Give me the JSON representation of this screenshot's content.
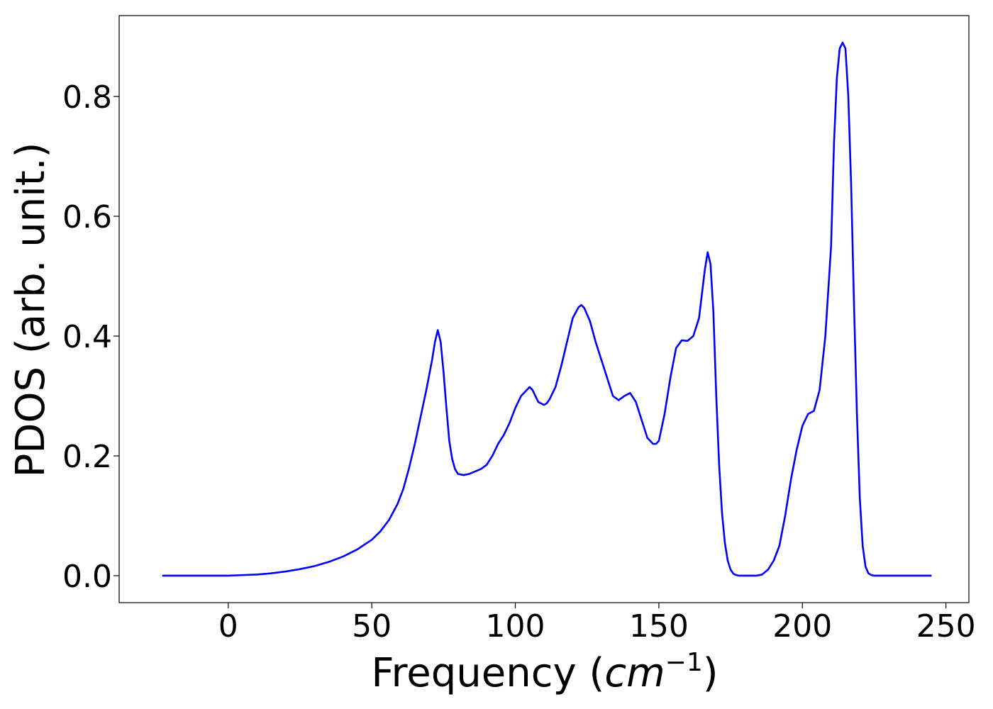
{
  "chart_data": {
    "type": "line",
    "title": "",
    "xlabel_prefix": "Frequency (",
    "xlabel_unit": "cm",
    "xlabel_exp": "−1",
    "xlabel_suffix": ")",
    "ylabel": "PDOS (arb. unit.)",
    "xlim": [
      -38,
      258
    ],
    "ylim": [
      -0.045,
      0.935
    ],
    "xticks": [
      0,
      50,
      100,
      150,
      200,
      250
    ],
    "xtick_labels": [
      "0",
      "50",
      "100",
      "150",
      "200",
      "250"
    ],
    "yticks": [
      0.0,
      0.2,
      0.4,
      0.6,
      0.8
    ],
    "ytick_labels": [
      "0.0",
      "0.2",
      "0.4",
      "0.6",
      "0.8"
    ],
    "grid": false,
    "series": [
      {
        "color": "#0000ff",
        "x": [
          -23,
          -10,
          0,
          5,
          10,
          15,
          20,
          25,
          30,
          35,
          40,
          45,
          50,
          53,
          56,
          59,
          61,
          63,
          65,
          67,
          69,
          71,
          72,
          73,
          74,
          75,
          76,
          77,
          78,
          79,
          80,
          82,
          84,
          86,
          88,
          90,
          92,
          94,
          96,
          98,
          100,
          102,
          104,
          105,
          106,
          107,
          108,
          110,
          111,
          112,
          114,
          116,
          118,
          120,
          122,
          123,
          124,
          126,
          128,
          130,
          132,
          134,
          136,
          138,
          140,
          142,
          144,
          146,
          148,
          149,
          150,
          152,
          154,
          156,
          158,
          160,
          162,
          164,
          166,
          167,
          168,
          169,
          170,
          171,
          172,
          173,
          174,
          175,
          176,
          177,
          178,
          179,
          180,
          182,
          184,
          186,
          188,
          190,
          192,
          194,
          196,
          198,
          200,
          202,
          204,
          206,
          208,
          210,
          211,
          212,
          213,
          214,
          215,
          216,
          217,
          218,
          219,
          220,
          221,
          222,
          223,
          224,
          225,
          226,
          227,
          228,
          230,
          235,
          245
        ],
        "y": [
          0.0,
          0.0,
          0.0,
          0.001,
          0.002,
          0.004,
          0.007,
          0.011,
          0.016,
          0.023,
          0.032,
          0.044,
          0.06,
          0.074,
          0.093,
          0.12,
          0.145,
          0.18,
          0.22,
          0.265,
          0.31,
          0.36,
          0.39,
          0.41,
          0.39,
          0.34,
          0.28,
          0.225,
          0.195,
          0.178,
          0.17,
          0.168,
          0.17,
          0.174,
          0.178,
          0.185,
          0.2,
          0.22,
          0.235,
          0.255,
          0.28,
          0.3,
          0.31,
          0.315,
          0.31,
          0.3,
          0.29,
          0.285,
          0.288,
          0.295,
          0.315,
          0.35,
          0.39,
          0.43,
          0.448,
          0.452,
          0.447,
          0.425,
          0.39,
          0.36,
          0.33,
          0.3,
          0.293,
          0.3,
          0.305,
          0.29,
          0.26,
          0.23,
          0.22,
          0.22,
          0.225,
          0.27,
          0.33,
          0.38,
          0.393,
          0.392,
          0.4,
          0.43,
          0.51,
          0.54,
          0.52,
          0.44,
          0.3,
          0.185,
          0.105,
          0.055,
          0.025,
          0.01,
          0.003,
          0.001,
          0.0,
          0.0,
          0.0,
          0.0,
          0.0,
          0.002,
          0.01,
          0.025,
          0.05,
          0.1,
          0.16,
          0.21,
          0.25,
          0.27,
          0.275,
          0.31,
          0.4,
          0.55,
          0.72,
          0.83,
          0.88,
          0.89,
          0.88,
          0.8,
          0.65,
          0.45,
          0.27,
          0.13,
          0.05,
          0.015,
          0.004,
          0.001,
          0.0,
          0.0,
          0.0,
          0.0,
          0.0,
          0.0,
          0.0
        ]
      }
    ]
  }
}
